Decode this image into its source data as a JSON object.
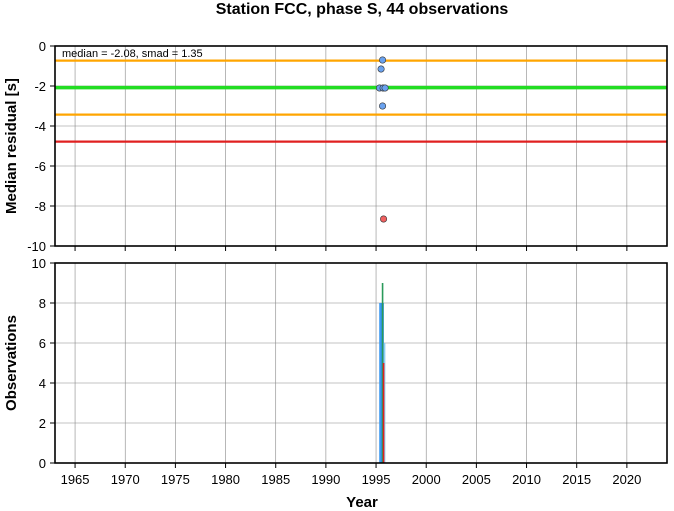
{
  "chart_data": {
    "title": "Station FCC, phase S, 44 observations",
    "xlabel": "Year",
    "xlim": [
      1963.0,
      2024.0
    ],
    "xticks": [
      1965,
      1970,
      1975,
      1980,
      1985,
      1990,
      1995,
      2000,
      2005,
      2010,
      2015,
      2020
    ],
    "grid": true,
    "panels": [
      {
        "type": "scatter",
        "ylabel": "Median residual [s]",
        "ylim": [
          -10,
          0
        ],
        "yticks": [
          0,
          -2,
          -4,
          -6,
          -8,
          -10
        ],
        "annotation": "median = -2.08, smad = 1.35",
        "hlines": [
          {
            "name": "median",
            "y": -2.08,
            "color": "#22dd22"
          },
          {
            "name": "upper",
            "y": -0.73,
            "color": "#ffa500"
          },
          {
            "name": "lower",
            "y": -3.43,
            "color": "#ffa500"
          },
          {
            "name": "cutoff",
            "y": -4.78,
            "color": "#e02020"
          }
        ],
        "points": [
          {
            "x": 1995.65,
            "y": -0.7,
            "color": "#6aa2ef"
          },
          {
            "x": 1995.5,
            "y": -1.15,
            "color": "#6aa2ef"
          },
          {
            "x": 1995.35,
            "y": -2.1,
            "color": "#6aa2ef"
          },
          {
            "x": 1995.7,
            "y": -2.1,
            "color": "#6aa2ef"
          },
          {
            "x": 1995.9,
            "y": -2.1,
            "color": "#6aa2ef"
          },
          {
            "x": 1995.65,
            "y": -3.0,
            "color": "#6aa2ef"
          },
          {
            "x": 1995.75,
            "y": -8.65,
            "color": "#f06060"
          }
        ]
      },
      {
        "type": "bar",
        "ylabel": "Observations",
        "ylim": [
          0,
          10
        ],
        "yticks": [
          0,
          2,
          4,
          6,
          8,
          10
        ],
        "series": [
          {
            "color": "#2f92f0",
            "bars": [
              {
                "x": 1995.4,
                "value": 8
              },
              {
                "x": 1995.55,
                "value": 8
              },
              {
                "x": 1995.7,
                "value": 8
              }
            ]
          },
          {
            "color": "#8ccff5",
            "bars": [
              {
                "x": 1995.85,
                "value": 6
              }
            ]
          },
          {
            "color": "#2a9a5a",
            "bars": [
              {
                "x": 1995.65,
                "value": 9
              }
            ]
          },
          {
            "color": "#e02020",
            "bars": [
              {
                "x": 1995.75,
                "value": 5
              }
            ]
          }
        ]
      }
    ]
  }
}
